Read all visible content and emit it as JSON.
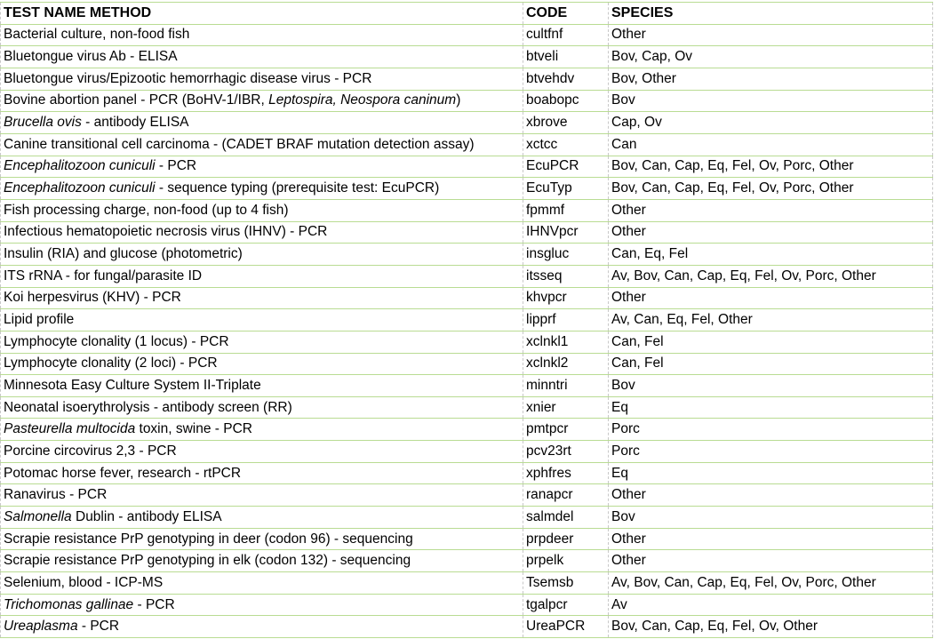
{
  "colors": {
    "row_border": "#b9dc93",
    "column_divider": "#c8c8c8"
  },
  "headers": [
    "TEST NAME METHOD",
    "CODE",
    "SPECIES"
  ],
  "rows": [
    {
      "name": [
        {
          "t": "Bacterial culture, non-food fish"
        }
      ],
      "code": "cultfnf",
      "species": "Other"
    },
    {
      "name": [
        {
          "t": "Bluetongue virus Ab - ELISA"
        }
      ],
      "code": "btveli",
      "species": "Bov, Cap, Ov"
    },
    {
      "name": [
        {
          "t": "Bluetongue virus/Epizootic hemorrhagic disease virus - PCR"
        }
      ],
      "code": "btvehdv",
      "species": "Bov, Other"
    },
    {
      "name": [
        {
          "t": "Bovine abortion panel - PCR (BoHV-1/IBR, "
        },
        {
          "t": "Leptospira, Neospora caninum",
          "i": true
        },
        {
          "t": ")"
        }
      ],
      "code": "boabopc",
      "species": "Bov"
    },
    {
      "name": [
        {
          "t": "Brucella ovis",
          "i": true
        },
        {
          "t": " - antibody ELISA"
        }
      ],
      "code": "xbrove",
      "species": "Cap, Ov"
    },
    {
      "name": [
        {
          "t": "Canine transitional cell carcinoma - (CADET BRAF mutation detection assay)"
        }
      ],
      "code": "xctcc",
      "species": "Can"
    },
    {
      "name": [
        {
          "t": "Encephalitozoon cuniculi",
          "i": true
        },
        {
          "t": " - PCR"
        }
      ],
      "code": "EcuPCR",
      "species": "Bov, Can, Cap, Eq, Fel, Ov, Porc, Other"
    },
    {
      "name": [
        {
          "t": "Encephalitozoon cuniculi",
          "i": true
        },
        {
          "t": " - sequence typing (prerequisite test: EcuPCR)"
        }
      ],
      "code": "EcuTyp",
      "species": "Bov, Can, Cap, Eq, Fel, Ov, Porc, Other"
    },
    {
      "name": [
        {
          "t": "Fish processing charge, non-food (up to 4 fish)"
        }
      ],
      "code": "fpmmf",
      "species": "Other"
    },
    {
      "name": [
        {
          "t": "Infectious hematopoietic necrosis virus (IHNV) - PCR"
        }
      ],
      "code": "IHNVpcr",
      "species": "Other"
    },
    {
      "name": [
        {
          "t": "Insulin (RIA) and glucose (photometric)"
        }
      ],
      "code": "insgluc",
      "species": "Can, Eq, Fel"
    },
    {
      "name": [
        {
          "t": "ITS rRNA - for fungal/parasite ID"
        }
      ],
      "code": "itsseq",
      "species": "Av, Bov, Can, Cap, Eq, Fel, Ov, Porc, Other"
    },
    {
      "name": [
        {
          "t": "Koi herpesvirus (KHV) - PCR"
        }
      ],
      "code": "khvpcr",
      "species": "Other"
    },
    {
      "name": [
        {
          "t": "Lipid profile"
        }
      ],
      "code": "lipprf",
      "species": "Av, Can, Eq, Fel, Other"
    },
    {
      "name": [
        {
          "t": "Lymphocyte clonality (1 locus) - PCR"
        }
      ],
      "code": "xclnkl1",
      "species": "Can, Fel"
    },
    {
      "name": [
        {
          "t": "Lymphocyte clonality (2 loci) - PCR"
        }
      ],
      "code": "xclnkl2",
      "species": "Can, Fel"
    },
    {
      "name": [
        {
          "t": "Minnesota Easy Culture System II-Triplate"
        }
      ],
      "code": "minntri",
      "species": "Bov"
    },
    {
      "name": [
        {
          "t": "Neonatal isoerythrolysis - antibody screen (RR)"
        }
      ],
      "code": "xnier",
      "species": "Eq"
    },
    {
      "name": [
        {
          "t": "Pasteurella multocida",
          "i": true
        },
        {
          "t": " toxin, swine - PCR"
        }
      ],
      "code": "pmtpcr",
      "species": "Porc"
    },
    {
      "name": [
        {
          "t": "Porcine circovirus 2,3 - PCR"
        }
      ],
      "code": "pcv23rt",
      "species": "Porc"
    },
    {
      "name": [
        {
          "t": "Potomac horse fever, research - rtPCR"
        }
      ],
      "code": "xphfres",
      "species": "Eq"
    },
    {
      "name": [
        {
          "t": "Ranavirus - PCR"
        }
      ],
      "code": "ranapcr",
      "species": "Other"
    },
    {
      "name": [
        {
          "t": "Salmonella",
          "i": true
        },
        {
          "t": " Dublin - antibody ELISA"
        }
      ],
      "code": "salmdel",
      "species": "Bov"
    },
    {
      "name": [
        {
          "t": "Scrapie resistance PrP genotyping in deer (codon 96) - sequencing"
        }
      ],
      "code": "prpdeer",
      "species": "Other"
    },
    {
      "name": [
        {
          "t": "Scrapie resistance PrP genotyping in elk (codon 132) - sequencing"
        }
      ],
      "code": "prpelk",
      "species": "Other"
    },
    {
      "name": [
        {
          "t": "Selenium, blood - ICP-MS"
        }
      ],
      "code": "Tsemsb",
      "species": "Av, Bov, Can, Cap, Eq, Fel, Ov, Porc, Other"
    },
    {
      "name": [
        {
          "t": "Trichomonas gallinae",
          "i": true
        },
        {
          "t": " - PCR"
        }
      ],
      "code": "tgalpcr",
      "species": "Av"
    },
    {
      "name": [
        {
          "t": "Ureaplasma",
          "i": true
        },
        {
          "t": " - PCR"
        }
      ],
      "code": "UreaPCR",
      "species": "Bov, Can, Cap, Eq, Fel, Ov, Other"
    }
  ]
}
